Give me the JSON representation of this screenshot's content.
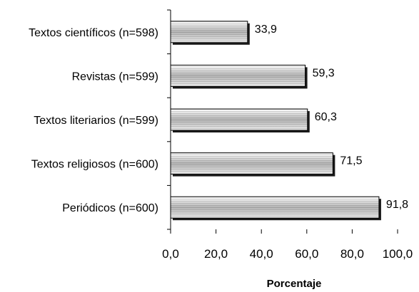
{
  "chart_data": {
    "type": "bar",
    "orientation": "horizontal",
    "categories": [
      "Textos científicos (n=598)",
      "Revistas (n=599)",
      "Textos literiarios (n=599)",
      "Textos religiosos (n=600)",
      "Periódicos (n=600)"
    ],
    "values": [
      33.9,
      59.3,
      60.3,
      71.5,
      91.8
    ],
    "value_labels": [
      "33,9",
      "59,3",
      "60,3",
      "71,5",
      "91,8"
    ],
    "xlabel": "Porcentaje",
    "ylabel": "",
    "xlim": [
      0,
      100
    ],
    "xticks": [
      0,
      20,
      40,
      60,
      80,
      100
    ],
    "xtick_labels": [
      "0,0",
      "20,0",
      "40,0",
      "60,0",
      "80,0",
      "100,0"
    ],
    "grid": false,
    "legend": "none",
    "bar_style": "gray gradient fill with black border and shadow"
  }
}
